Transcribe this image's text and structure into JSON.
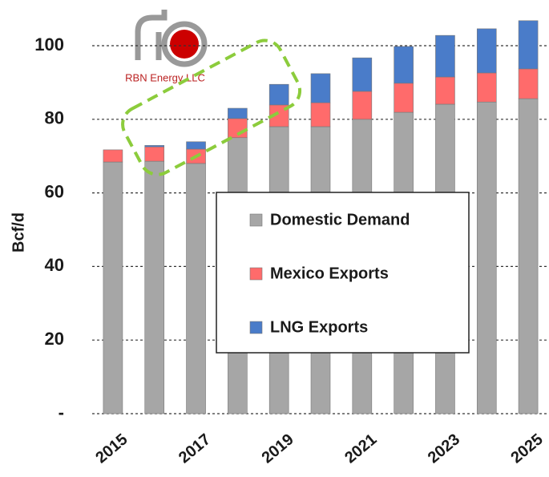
{
  "chart_data": {
    "type": "stacked_bar",
    "logo": "RBN Energy LLC",
    "ylabel": "Bcf/d",
    "categories": [
      "2015",
      null,
      "2017",
      null,
      "2019",
      null,
      "2021",
      null,
      "2023",
      null,
      "2025"
    ],
    "series": [
      {
        "name": "Domestic Demand",
        "color": "#a6a6a6",
        "values": [
          68.4,
          68.6,
          68,
          75,
          78,
          78,
          80,
          81.9,
          84.1,
          84.7,
          85.6
        ]
      },
      {
        "name": "Mexico Exports",
        "color": "#ff6b6b",
        "values": [
          3.3,
          3.9,
          3.9,
          5.2,
          5.9,
          6.5,
          7.6,
          7.9,
          7.4,
          7.9,
          8.1
        ]
      },
      {
        "name": "LNG Exports",
        "color": "#4a7cc9",
        "values": [
          0,
          0.4,
          2,
          2.8,
          5.6,
          7.9,
          9.1,
          10,
          11.3,
          12,
          13.1
        ]
      }
    ],
    "ylim": [
      0,
      110
    ],
    "yticks": [
      {
        "value": 0,
        "label": "-"
      },
      20,
      40,
      60,
      80,
      100
    ],
    "grid": true,
    "legend": "center"
  }
}
